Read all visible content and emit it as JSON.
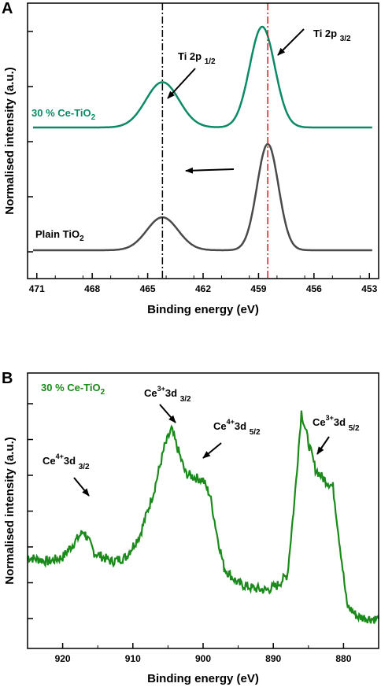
{
  "colors": {
    "green": "#0a8a65",
    "darkgreen": "#1a8a1a",
    "gray": "#4a4a4a",
    "red": "#e0141e",
    "black": "#000000"
  },
  "chart_data": [
    {
      "panel": "A",
      "type": "line",
      "xlabel": "Binding energy (eV)",
      "ylabel": "Normalised intensity (a.u.)",
      "xlim": [
        471.5,
        452.5
      ],
      "x_reversed": true,
      "xticks": [
        "471",
        "468",
        "465",
        "462",
        "459",
        "456",
        "453"
      ],
      "grid": false,
      "series": [
        {
          "name": "30 % Ce-TiO2",
          "label_main": "30 % Ce-TiO",
          "label_sub": "2",
          "color": "#0a8a65",
          "peaks": [
            {
              "x": 464.2,
              "height": 0.45,
              "width": 0.9
            },
            {
              "x": 458.8,
              "height": 1.0,
              "width": 0.68
            }
          ]
        },
        {
          "name": "Plain TiO2",
          "label_main": "Plain TiO",
          "label_sub": "2",
          "color": "#4a4a4a",
          "peaks": [
            {
              "x": 464.2,
              "height": 0.31,
              "width": 0.85
            },
            {
              "x": 458.5,
              "height": 1.0,
              "width": 0.58
            }
          ]
        }
      ],
      "reference_lines": [
        {
          "x": 464.2,
          "color": "#000000"
        },
        {
          "x": 458.5,
          "color": "#e0141e"
        }
      ],
      "annotations": [
        {
          "main": "Ti 2p ",
          "sub": "1/2"
        },
        {
          "main": "Ti 2p ",
          "sub": "3/2"
        }
      ]
    },
    {
      "panel": "B",
      "type": "line",
      "xlabel": "Binding energy (eV)",
      "ylabel": "Normalised intensity (a.u.)",
      "xlim": [
        925,
        875
      ],
      "x_reversed": true,
      "xticks": [
        "920",
        "910",
        "900",
        "890",
        "880"
      ],
      "grid": false,
      "series": [
        {
          "name": "30 % Ce-TiO2",
          "label_main": "30 % Ce-TiO",
          "label_sub": "2",
          "color": "#1a8a1a",
          "points": [
            [
              925,
              0.3
            ],
            [
              922,
              0.28
            ],
            [
              920,
              0.3
            ],
            [
              918.5,
              0.36
            ],
            [
              917,
              0.42
            ],
            [
              915.5,
              0.32
            ],
            [
              913,
              0.28
            ],
            [
              911,
              0.3
            ],
            [
              909,
              0.4
            ],
            [
              907,
              0.6
            ],
            [
              905.5,
              0.8
            ],
            [
              904.5,
              0.88
            ],
            [
              903.5,
              0.78
            ],
            [
              902.5,
              0.68
            ],
            [
              901,
              0.66
            ],
            [
              900,
              0.65
            ],
            [
              899,
              0.58
            ],
            [
              898,
              0.4
            ],
            [
              897,
              0.25
            ],
            [
              895,
              0.18
            ],
            [
              893,
              0.16
            ],
            [
              891,
              0.15
            ],
            [
              889.5,
              0.17
            ],
            [
              888,
              0.22
            ],
            [
              887,
              0.55
            ],
            [
              886,
              0.96
            ],
            [
              885,
              0.82
            ],
            [
              884,
              0.7
            ],
            [
              883,
              0.66
            ],
            [
              881.5,
              0.62
            ],
            [
              880.5,
              0.35
            ],
            [
              879.5,
              0.08
            ],
            [
              878,
              0.03
            ],
            [
              876,
              0.02
            ],
            [
              875,
              0.02
            ]
          ]
        }
      ],
      "annotations": [
        {
          "ion": "Ce",
          "charge": "4+",
          "orbital": "3d ",
          "sub": "3/2"
        },
        {
          "ion": "Ce",
          "charge": "3+",
          "orbital": "3d ",
          "sub": "3/2"
        },
        {
          "ion": "Ce",
          "charge": "4+",
          "orbital": "3d ",
          "sub": "5/2"
        },
        {
          "ion": "Ce",
          "charge": "3+",
          "orbital": "3d ",
          "sub": "5/2"
        }
      ]
    }
  ]
}
